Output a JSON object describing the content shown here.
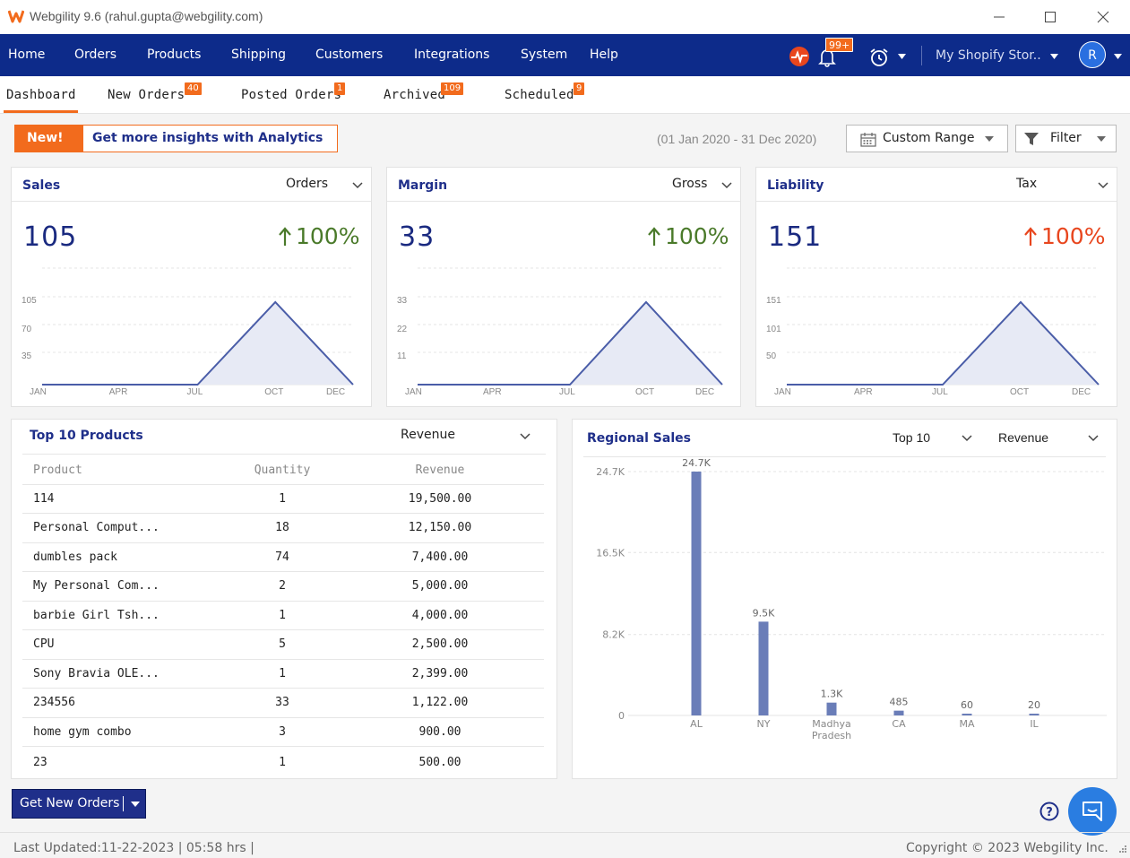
{
  "window": {
    "title": "Webgility 9.6 (rahul.gupta@webgility.com)"
  },
  "nav": {
    "items": [
      "Home",
      "Orders",
      "Products",
      "Shipping",
      "Customers",
      "Integrations",
      "System",
      "Help"
    ],
    "notification_count": "99+",
    "store_name": "My Shopify Stor..",
    "avatar_initial": "R"
  },
  "tabs": [
    {
      "label": "Dashboard",
      "badge": ""
    },
    {
      "label": "New Orders",
      "badge": "40"
    },
    {
      "label": "Posted Orders",
      "badge": "1"
    },
    {
      "label": "Archived",
      "badge": "109"
    },
    {
      "label": "Scheduled",
      "badge": "9"
    }
  ],
  "promo": {
    "new_label": "New!",
    "text": "Get more insights with Analytics"
  },
  "date_range": "(01 Jan 2020 - 31 Dec 2020)",
  "range_button": "Custom Range",
  "filter_button": "Filter",
  "accent_color": "#f26b1d",
  "brand_color": "#0d2b8a",
  "cards": [
    {
      "title": "Sales",
      "selector": "Orders",
      "value": "105",
      "change": "100%",
      "change_color": "#4a7a2a",
      "yticks": [
        "105",
        "70",
        "35"
      ],
      "xticks": [
        "JAN",
        "APR",
        "JUL",
        "OCT",
        "DEC"
      ]
    },
    {
      "title": "Margin",
      "selector": "Gross",
      "value": "33",
      "change": "100%",
      "change_color": "#4a7a2a",
      "yticks": [
        "33",
        "22",
        "11"
      ],
      "xticks": [
        "JAN",
        "APR",
        "JUL",
        "OCT",
        "DEC"
      ]
    },
    {
      "title": "Liability",
      "selector": "Tax",
      "value": "151",
      "change": "100%",
      "change_color": "#e8461e",
      "yticks": [
        "151",
        "101",
        "50"
      ],
      "xticks": [
        "JAN",
        "APR",
        "JUL",
        "OCT",
        "DEC"
      ]
    }
  ],
  "top_products": {
    "title": "Top 10 Products",
    "selector": "Revenue",
    "columns": [
      "Product",
      "Quantity",
      "Revenue"
    ],
    "rows": [
      [
        "114",
        "1",
        "19,500.00"
      ],
      [
        "Personal Comput...",
        "18",
        "12,150.00"
      ],
      [
        "dumbles pack",
        "74",
        "7,400.00"
      ],
      [
        "My Personal Com...",
        "2",
        "5,000.00"
      ],
      [
        "barbie Girl Tsh...",
        "1",
        "4,000.00"
      ],
      [
        "CPU",
        "5",
        "2,500.00"
      ],
      [
        "Sony Bravia OLE...",
        "1",
        "2,399.00"
      ],
      [
        "234556",
        "33",
        "1,122.00"
      ],
      [
        "home gym combo",
        "3",
        "900.00"
      ],
      [
        "23",
        "1",
        "500.00"
      ]
    ]
  },
  "regional": {
    "title": "Regional Sales",
    "selector_top": "Top 10",
    "selector_metric": "Revenue",
    "chart_data": {
      "type": "bar",
      "categories": [
        "AL",
        "NY",
        "Madhya Pradesh",
        "CA",
        "MA",
        "IL"
      ],
      "values": [
        24700,
        9500,
        1300,
        485,
        60,
        20
      ],
      "data_labels": [
        "24.7K",
        "9.5K",
        "1.3K",
        "485",
        "60",
        "20"
      ],
      "yticks": [
        "24.7K",
        "16.5K",
        "8.2K",
        "0"
      ],
      "ylim": [
        0,
        24700
      ],
      "color": "#6a7db8"
    }
  },
  "footer": {
    "get_orders": "Get New Orders",
    "last_updated": "Last Updated:11-22-2023 | 05:58 hrs |",
    "copyright": "Copyright © 2023 Webgility Inc."
  }
}
